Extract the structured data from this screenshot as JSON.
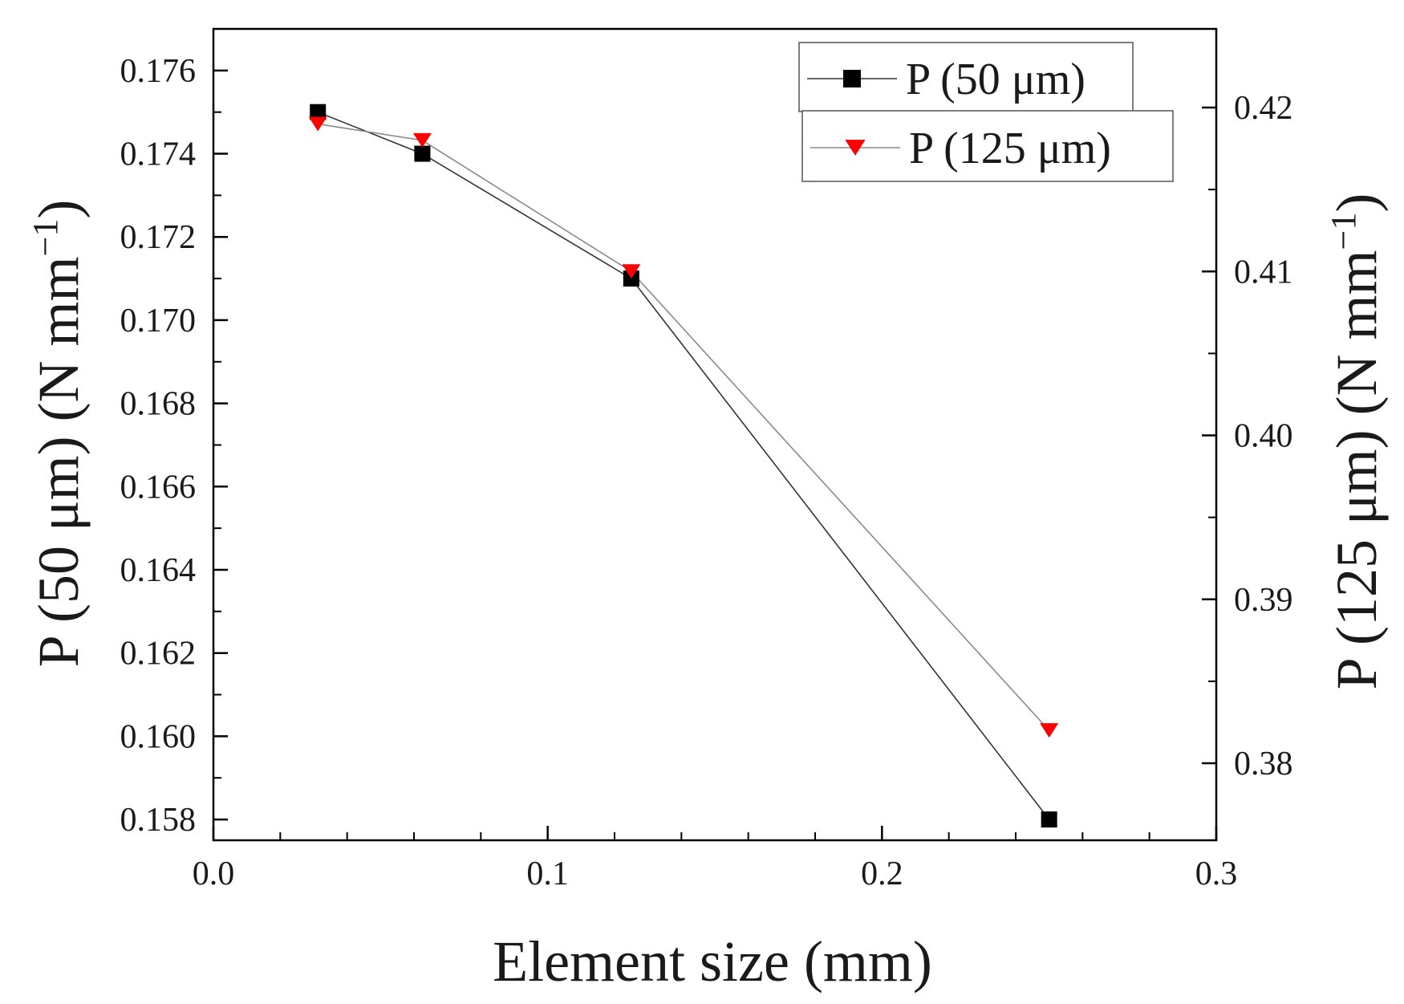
{
  "chart_data": {
    "type": "line",
    "title": "",
    "xlabel": "Element size (mm)",
    "ylabel_left": "P (50 μm) (N mm",
    "ylabel_right": "P  (125 μm) (N mm",
    "ylabel_exponent": "−1",
    "ylabel_close": ")",
    "xlim": [
      0.0,
      0.3
    ],
    "ylim_left": [
      0.1575,
      0.177
    ],
    "ylim_right": [
      0.3753,
      0.4248
    ],
    "x_ticks": [
      {
        "value": 0.0,
        "label": "0.0"
      },
      {
        "value": 0.1,
        "label": "0.1"
      },
      {
        "value": 0.2,
        "label": "0.2"
      },
      {
        "value": 0.3,
        "label": "0.3"
      }
    ],
    "x_minor_ticks": [
      0.02,
      0.04,
      0.06,
      0.08,
      0.12,
      0.14,
      0.16,
      0.18,
      0.22,
      0.24,
      0.26,
      0.28
    ],
    "y_left_ticks": [
      {
        "value": 0.158,
        "label": "0.158"
      },
      {
        "value": 0.16,
        "label": "0.160"
      },
      {
        "value": 0.162,
        "label": "0.162"
      },
      {
        "value": 0.164,
        "label": "0.164"
      },
      {
        "value": 0.166,
        "label": "0.166"
      },
      {
        "value": 0.168,
        "label": "0.168"
      },
      {
        "value": 0.17,
        "label": "0.170"
      },
      {
        "value": 0.172,
        "label": "0.172"
      },
      {
        "value": 0.174,
        "label": "0.174"
      },
      {
        "value": 0.176,
        "label": "0.176"
      }
    ],
    "y_left_minor_ticks": [
      0.159,
      0.161,
      0.163,
      0.165,
      0.167,
      0.169,
      0.171,
      0.173,
      0.175
    ],
    "y_right_ticks": [
      {
        "value": 0.38,
        "label": "0.38"
      },
      {
        "value": 0.39,
        "label": "0.39"
      },
      {
        "value": 0.4,
        "label": "0.40"
      },
      {
        "value": 0.41,
        "label": "0.41"
      },
      {
        "value": 0.42,
        "label": "0.42"
      }
    ],
    "y_right_minor_ticks": [
      0.385,
      0.395,
      0.405,
      0.415
    ],
    "x": [
      0.03125,
      0.0625,
      0.125,
      0.25
    ],
    "series": [
      {
        "name": "P (50 μm)",
        "axis": "left",
        "marker": "square",
        "color": "#000000",
        "line_color": "#333333",
        "values": [
          0.175,
          0.174,
          0.171,
          0.158
        ]
      },
      {
        "name": "P  (125 μm)",
        "axis": "right",
        "marker": "triangle-down",
        "color": "#ff0000",
        "line_color": "#8a8a8a",
        "values": [
          0.419,
          0.418,
          0.41,
          0.382
        ]
      }
    ],
    "legend_position": "top-right",
    "grid": false
  }
}
